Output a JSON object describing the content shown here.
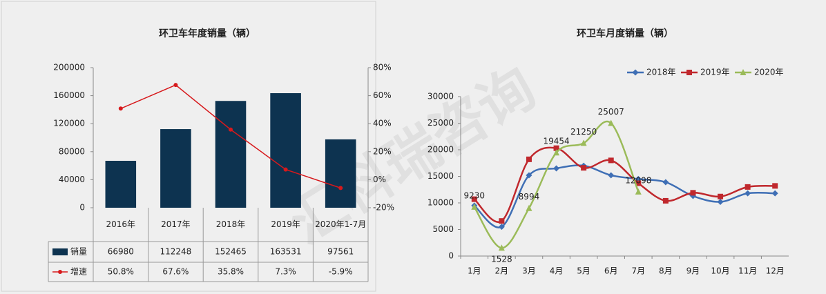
{
  "watermark": "汇科瑞咨询",
  "chart_data": [
    {
      "type": "bar",
      "title": "环卫车年度销量（辆）",
      "categories": [
        "2016年",
        "2017年",
        "2018年",
        "2019年",
        "2020年1-7月"
      ],
      "series": [
        {
          "name": "销量",
          "color": "#0d3350",
          "values": [
            66980,
            112248,
            152465,
            163531,
            97561
          ]
        },
        {
          "name": "增速",
          "color": "#d7191c",
          "axis": "y2",
          "values": [
            50.8,
            67.6,
            35.8,
            7.3,
            -5.9
          ],
          "value_labels": [
            "50.8%",
            "67.6%",
            "35.8%",
            "7.3%",
            "-5.9%"
          ]
        }
      ],
      "ylim": [
        0,
        200000
      ],
      "yticks": [
        0,
        40000,
        80000,
        120000,
        160000,
        200000
      ],
      "y2lim": [
        -20,
        80
      ],
      "y2ticks": [
        {
          "value": -20,
          "label": "-20%"
        },
        {
          "value": 0,
          "label": "0%"
        },
        {
          "value": 20,
          "label": "20%"
        },
        {
          "value": 40,
          "label": "40%"
        },
        {
          "value": 60,
          "label": "60%"
        },
        {
          "value": 80,
          "label": "80%"
        }
      ],
      "grid": false
    },
    {
      "type": "line",
      "title": "环卫车月度销量（辆）",
      "categories": [
        "1月",
        "2月",
        "3月",
        "4月",
        "5月",
        "6月",
        "7月",
        "8月",
        "9月",
        "10月",
        "11月",
        "12月"
      ],
      "series": [
        {
          "name": "2018年",
          "color": "#3f6fb5",
          "values": [
            9500,
            5500,
            15200,
            16500,
            17000,
            15200,
            14500,
            13900,
            11300,
            10200,
            11800,
            11800
          ]
        },
        {
          "name": "2019年",
          "color": "#c0282d",
          "values": [
            10700,
            6600,
            18200,
            20300,
            16600,
            18000,
            13700,
            10400,
            11900,
            11200,
            13000,
            13200
          ]
        },
        {
          "name": "2020年",
          "color": "#9bbb59",
          "values": [
            9230,
            1528,
            8994,
            19454,
            21250,
            25007,
            12098,
            null,
            null,
            null,
            null,
            null
          ],
          "show_labels": true
        }
      ],
      "ylim": [
        0,
        30000
      ],
      "yticks": [
        0,
        5000,
        10000,
        15000,
        20000,
        25000,
        30000
      ],
      "grid": false,
      "legend": "top"
    }
  ]
}
